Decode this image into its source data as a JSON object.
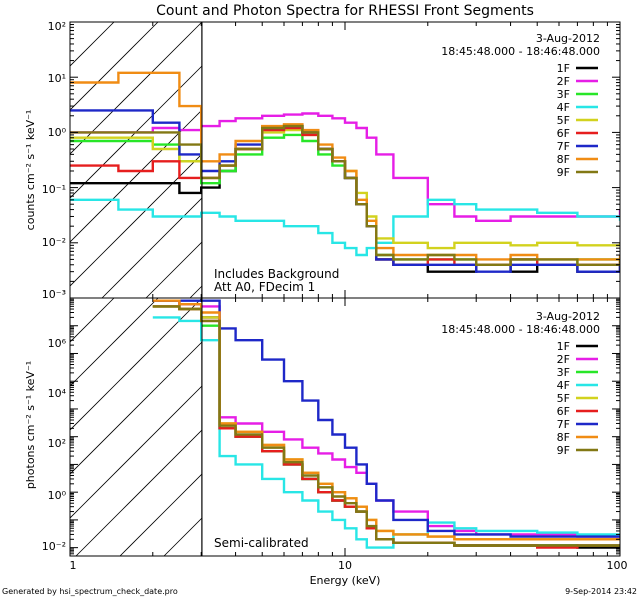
{
  "title": "Count and Photon Spectra for RHESSI Front Segments",
  "footer_left": "Generated by hsi_spectrum_check_date.pro",
  "footer_right": "9-Sep-2014 23:42",
  "xlabel": "Energy (keV)",
  "x_ticks": [
    "1",
    "10",
    "100"
  ],
  "legend": {
    "date": "3-Aug-2012",
    "time": "18:45:48.000 - 18:46:48.000",
    "entries": [
      "1F",
      "2F",
      "3F",
      "4F",
      "5F",
      "6F",
      "7F",
      "8F",
      "9F"
    ]
  },
  "series_colors": {
    "1F": "#000000",
    "2F": "#e61ee6",
    "3F": "#28e628",
    "4F": "#28e6e6",
    "5F": "#d2d21e",
    "6F": "#e61e1e",
    "7F": "#1e28c8",
    "8F": "#f08c14",
    "9F": "#827814"
  },
  "top_panel": {
    "ylabel": "counts cm⁻² s⁻¹ keV⁻¹",
    "y_ticks": [
      "10⁻³",
      "10⁻²",
      "10⁻¹",
      "10⁰",
      "10¹",
      "10²"
    ],
    "annotation_1": "Includes Background",
    "annotation_2": "Att A0, FDecim 1"
  },
  "bottom_panel": {
    "ylabel": "photons cm⁻² s⁻¹ keV⁻¹",
    "y_ticks": [
      "10⁻²",
      "10⁰",
      "10²",
      "10⁴",
      "10⁶"
    ],
    "annotation": "Semi-calibrated"
  },
  "chart_data": [
    {
      "type": "line",
      "title": "Count and Photon Spectra for RHESSI Front Segments",
      "xlabel": "Energy (keV)",
      "ylabel": "counts cm⁻² s⁻¹ keV⁻¹",
      "xscale": "log",
      "yscale": "log",
      "xlim": [
        1,
        100
      ],
      "ylim": [
        0.001,
        100
      ],
      "hatched_region_keV": [
        1,
        3
      ],
      "x": [
        1,
        1.5,
        2,
        2.5,
        3,
        3.5,
        4,
        5,
        6,
        7,
        8,
        9,
        10,
        11,
        12,
        13,
        15,
        20,
        25,
        30,
        40,
        50,
        70,
        100
      ],
      "series": [
        {
          "name": "1F",
          "values": [
            0.12,
            0.12,
            0.12,
            0.08,
            0.1,
            0.2,
            0.5,
            1.2,
            1.3,
            1.0,
            0.5,
            0.3,
            0.15,
            0.05,
            0.02,
            0.005,
            0.004,
            0.003,
            0.003,
            0.004,
            0.003,
            0.004,
            0.003,
            0.004
          ]
        },
        {
          "name": "2F",
          "values": [
            1.0,
            1.0,
            1.2,
            1.1,
            1.3,
            1.6,
            1.8,
            2.0,
            2.1,
            2.2,
            2.0,
            1.8,
            1.5,
            1.2,
            0.8,
            0.4,
            0.15,
            0.05,
            0.03,
            0.025,
            0.03,
            0.03,
            0.03,
            0.04
          ]
        },
        {
          "name": "3F",
          "values": [
            0.7,
            0.7,
            0.6,
            0.3,
            0.12,
            0.2,
            0.4,
            0.8,
            0.9,
            0.7,
            0.4,
            0.25,
            0.15,
            0.05,
            0.02,
            0.006,
            0.005,
            0.005,
            0.005,
            0.004,
            0.005,
            0.004,
            0.005,
            0.005
          ]
        },
        {
          "name": "4F",
          "values": [
            0.06,
            0.04,
            0.03,
            0.03,
            0.035,
            0.03,
            0.025,
            0.025,
            0.02,
            0.02,
            0.015,
            0.01,
            0.008,
            0.006,
            0.008,
            0.01,
            0.03,
            0.06,
            0.05,
            0.04,
            0.04,
            0.035,
            0.03,
            0.025
          ]
        },
        {
          "name": "5F",
          "values": [
            0.8,
            0.8,
            0.5,
            0.3,
            0.15,
            0.25,
            0.5,
            1.0,
            1.1,
            0.9,
            0.5,
            0.3,
            0.2,
            0.08,
            0.03,
            0.012,
            0.01,
            0.008,
            0.01,
            0.01,
            0.009,
            0.01,
            0.009,
            0.01
          ]
        },
        {
          "name": "6F",
          "values": [
            0.25,
            0.2,
            0.3,
            0.15,
            0.15,
            0.25,
            0.5,
            1.1,
            1.2,
            0.9,
            0.5,
            0.3,
            0.15,
            0.05,
            0.02,
            0.005,
            0.004,
            0.005,
            0.004,
            0.004,
            0.005,
            0.004,
            0.004,
            0.005
          ]
        },
        {
          "name": "7F",
          "values": [
            2.5,
            2.5,
            1.5,
            0.4,
            0.2,
            0.3,
            0.6,
            1.2,
            1.3,
            1.0,
            0.5,
            0.3,
            0.15,
            0.05,
            0.02,
            0.005,
            0.004,
            0.004,
            0.004,
            0.003,
            0.004,
            0.004,
            0.003,
            0.004
          ]
        },
        {
          "name": "8F",
          "values": [
            8.0,
            12.0,
            12.0,
            3.0,
            0.3,
            0.4,
            0.7,
            1.3,
            1.4,
            1.1,
            0.6,
            0.35,
            0.2,
            0.06,
            0.025,
            0.008,
            0.006,
            0.006,
            0.006,
            0.005,
            0.006,
            0.005,
            0.005,
            0.006
          ]
        },
        {
          "name": "9F",
          "values": [
            1.0,
            1.0,
            1.0,
            0.6,
            0.15,
            0.25,
            0.5,
            1.2,
            1.3,
            1.0,
            0.5,
            0.3,
            0.15,
            0.05,
            0.02,
            0.006,
            0.005,
            0.006,
            0.005,
            0.004,
            0.005,
            0.005,
            0.004,
            0.005
          ]
        }
      ]
    },
    {
      "type": "line",
      "title": "",
      "xlabel": "Energy (keV)",
      "ylabel": "photons cm⁻² s⁻¹ keV⁻¹",
      "xscale": "log",
      "yscale": "log",
      "xlim": [
        1,
        100
      ],
      "ylim": [
        0.005,
        10000000
      ],
      "hatched_region_keV": [
        1,
        3
      ],
      "x": [
        2,
        2.5,
        3,
        3.5,
        4,
        5,
        6,
        7,
        8,
        9,
        10,
        11,
        12,
        13,
        15,
        20,
        25,
        30,
        40,
        50,
        70,
        100
      ],
      "series": [
        {
          "name": "1F",
          "values": [
            8000000,
            6000000,
            2000000,
            200,
            100,
            30,
            10,
            3,
            1,
            0.5,
            0.3,
            0.2,
            0.05,
            0.02,
            0.015,
            0.015,
            0.012,
            0.012,
            0.012,
            0.012,
            0.01,
            0.012
          ]
        },
        {
          "name": "2F",
          "values": [
            8000000,
            6000000,
            5000000,
            500,
            300,
            150,
            80,
            40,
            25,
            15,
            8,
            5,
            2,
            0.5,
            0.2,
            0.06,
            0.04,
            0.03,
            0.03,
            0.03,
            0.025,
            0.03
          ]
        },
        {
          "name": "3F",
          "values": [
            5000000,
            4000000,
            1000000,
            200,
            100,
            30,
            10,
            3,
            1,
            0.5,
            0.3,
            0.2,
            0.05,
            0.02,
            0.015,
            0.015,
            0.012,
            0.012,
            0.012,
            0.012,
            0.012,
            0.012
          ]
        },
        {
          "name": "4F",
          "values": [
            2000000,
            1500000,
            300000,
            20,
            10,
            3,
            1,
            0.5,
            0.2,
            0.1,
            0.05,
            0.02,
            0.01,
            0.01,
            0.03,
            0.08,
            0.05,
            0.04,
            0.04,
            0.035,
            0.03,
            0.025
          ]
        },
        {
          "name": "5F",
          "values": [
            5000000,
            4000000,
            2000000,
            300,
            150,
            50,
            15,
            5,
            2,
            1,
            0.6,
            0.3,
            0.1,
            0.04,
            0.03,
            0.025,
            0.02,
            0.02,
            0.02,
            0.02,
            0.02,
            0.02
          ]
        },
        {
          "name": "6F",
          "values": [
            5000000,
            4000000,
            1500000,
            200,
            100,
            30,
            10,
            3,
            1,
            0.5,
            0.3,
            0.2,
            0.05,
            0.02,
            0.015,
            0.015,
            0.012,
            0.012,
            0.012,
            0.01,
            0.012,
            0.012
          ]
        },
        {
          "name": "7F",
          "values": [
            8000000,
            8000000,
            8000000,
            800000,
            300000,
            60000,
            10000,
            2000,
            400,
            120,
            40,
            10,
            2,
            0.5,
            0.1,
            0.04,
            0.03,
            0.03,
            0.025,
            0.025,
            0.025,
            0.025
          ]
        },
        {
          "name": "8F",
          "values": [
            8000000,
            6000000,
            3000000,
            300,
            150,
            50,
            15,
            5,
            2,
            1,
            0.6,
            0.3,
            0.1,
            0.04,
            0.03,
            0.025,
            0.02,
            0.02,
            0.02,
            0.02,
            0.02,
            0.02
          ]
        },
        {
          "name": "9F",
          "values": [
            5000000,
            4000000,
            1500000,
            250,
            120,
            40,
            12,
            4,
            1.5,
            0.7,
            0.4,
            0.2,
            0.06,
            0.02,
            0.015,
            0.015,
            0.012,
            0.012,
            0.012,
            0.012,
            0.012,
            0.012
          ]
        }
      ]
    }
  ]
}
